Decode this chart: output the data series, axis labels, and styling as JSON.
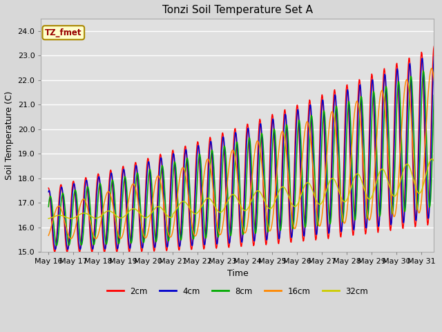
{
  "title": "Tonzi Soil Temperature Set A",
  "xlabel": "Time",
  "ylabel": "Soil Temperature (C)",
  "ylim": [
    15.0,
    24.5
  ],
  "xlim": [
    -0.3,
    15.5
  ],
  "yticks": [
    15.0,
    16.0,
    17.0,
    18.0,
    19.0,
    20.0,
    21.0,
    22.0,
    23.0,
    24.0
  ],
  "xtick_labels": [
    "May 16",
    "May 17",
    "May 18",
    "May 19",
    "May 20",
    "May 21",
    "May 22",
    "May 23",
    "May 24",
    "May 25",
    "May 26",
    "May 27",
    "May 28",
    "May 29",
    "May 30",
    "May 31"
  ],
  "legend_label": "TZ_fmet",
  "series_labels": [
    "2cm",
    "4cm",
    "8cm",
    "16cm",
    "32cm"
  ],
  "series_colors": [
    "#ff0000",
    "#0000cc",
    "#00aa00",
    "#ff8800",
    "#cccc00"
  ],
  "fig_bg_color": "#d8d8d8",
  "plot_bg_color": "#e0e0e0",
  "grid_color": "#ffffff",
  "title_fontsize": 11,
  "axis_fontsize": 9,
  "tick_fontsize": 8,
  "n_points": 800,
  "x_start": 0,
  "x_end": 15.5,
  "freq_shallow": 2.0,
  "freq_deep16": 1.0,
  "freq_deep32": 0.5,
  "trend_base": 16.3,
  "trend_slope": 0.13,
  "trend_quad": 0.006
}
